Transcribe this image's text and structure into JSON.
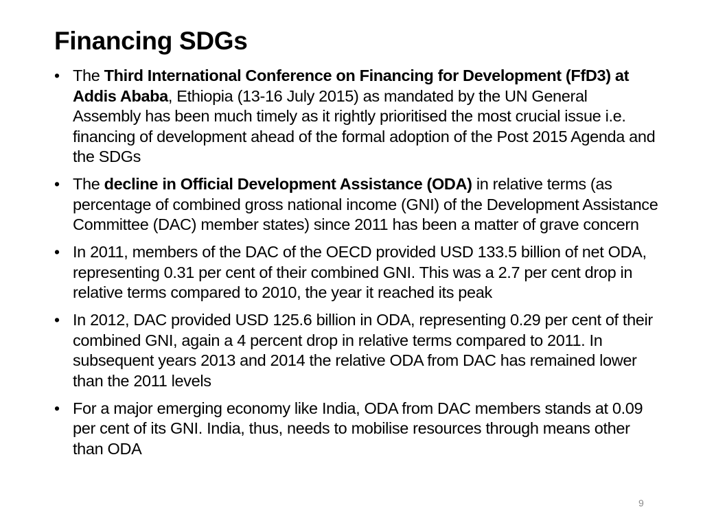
{
  "slide": {
    "title": "Financing SDGs",
    "page_number": "9",
    "bullet_glyph": "•",
    "bullets": [
      {
        "parts": [
          {
            "text": "The ",
            "bold": false
          },
          {
            "text": "Third International Conference on Financing for Development (FfD3) at Addis Ababa",
            "bold": true
          },
          {
            "text": ", Ethiopia (13-16 July 2015) as mandated by the UN General Assembly has been much timely as it rightly prioritised the most crucial issue i.e. financing of development ahead of the formal adoption of the Post 2015 Agenda and the SDGs",
            "bold": false
          }
        ]
      },
      {
        "parts": [
          {
            "text": "The ",
            "bold": false
          },
          {
            "text": "decline in Official Development Assistance (ODA)",
            "bold": true
          },
          {
            "text": " in relative terms (as percentage of combined gross national income (GNI) of the Development Assistance Committee (DAC) member states) since 2011 has been a matter of grave concern",
            "bold": false
          }
        ]
      },
      {
        "parts": [
          {
            "text": "In 2011, members of the DAC of the OECD provided USD 133.5 billion of net ODA, representing 0.31 per cent of their combined GNI.  This was a 2.7 per cent drop in relative terms compared to 2010, the year it reached its peak",
            "bold": false
          }
        ]
      },
      {
        "parts": [
          {
            "text": "In 2012, DAC provided USD 125.6 billion in ODA, representing 0.29 per cent of their combined GNI, again a 4 percent drop in relative terms compared to 2011. In subsequent years 2013 and 2014 the relative ODA from DAC has remained lower than the 2011 levels",
            "bold": false
          }
        ]
      },
      {
        "parts": [
          {
            "text": "For a major emerging economy like India, ODA from DAC members stands at 0.09 per cent of its GNI. India, thus, needs to mobilise resources through means other than ODA",
            "bold": false
          }
        ]
      }
    ]
  }
}
